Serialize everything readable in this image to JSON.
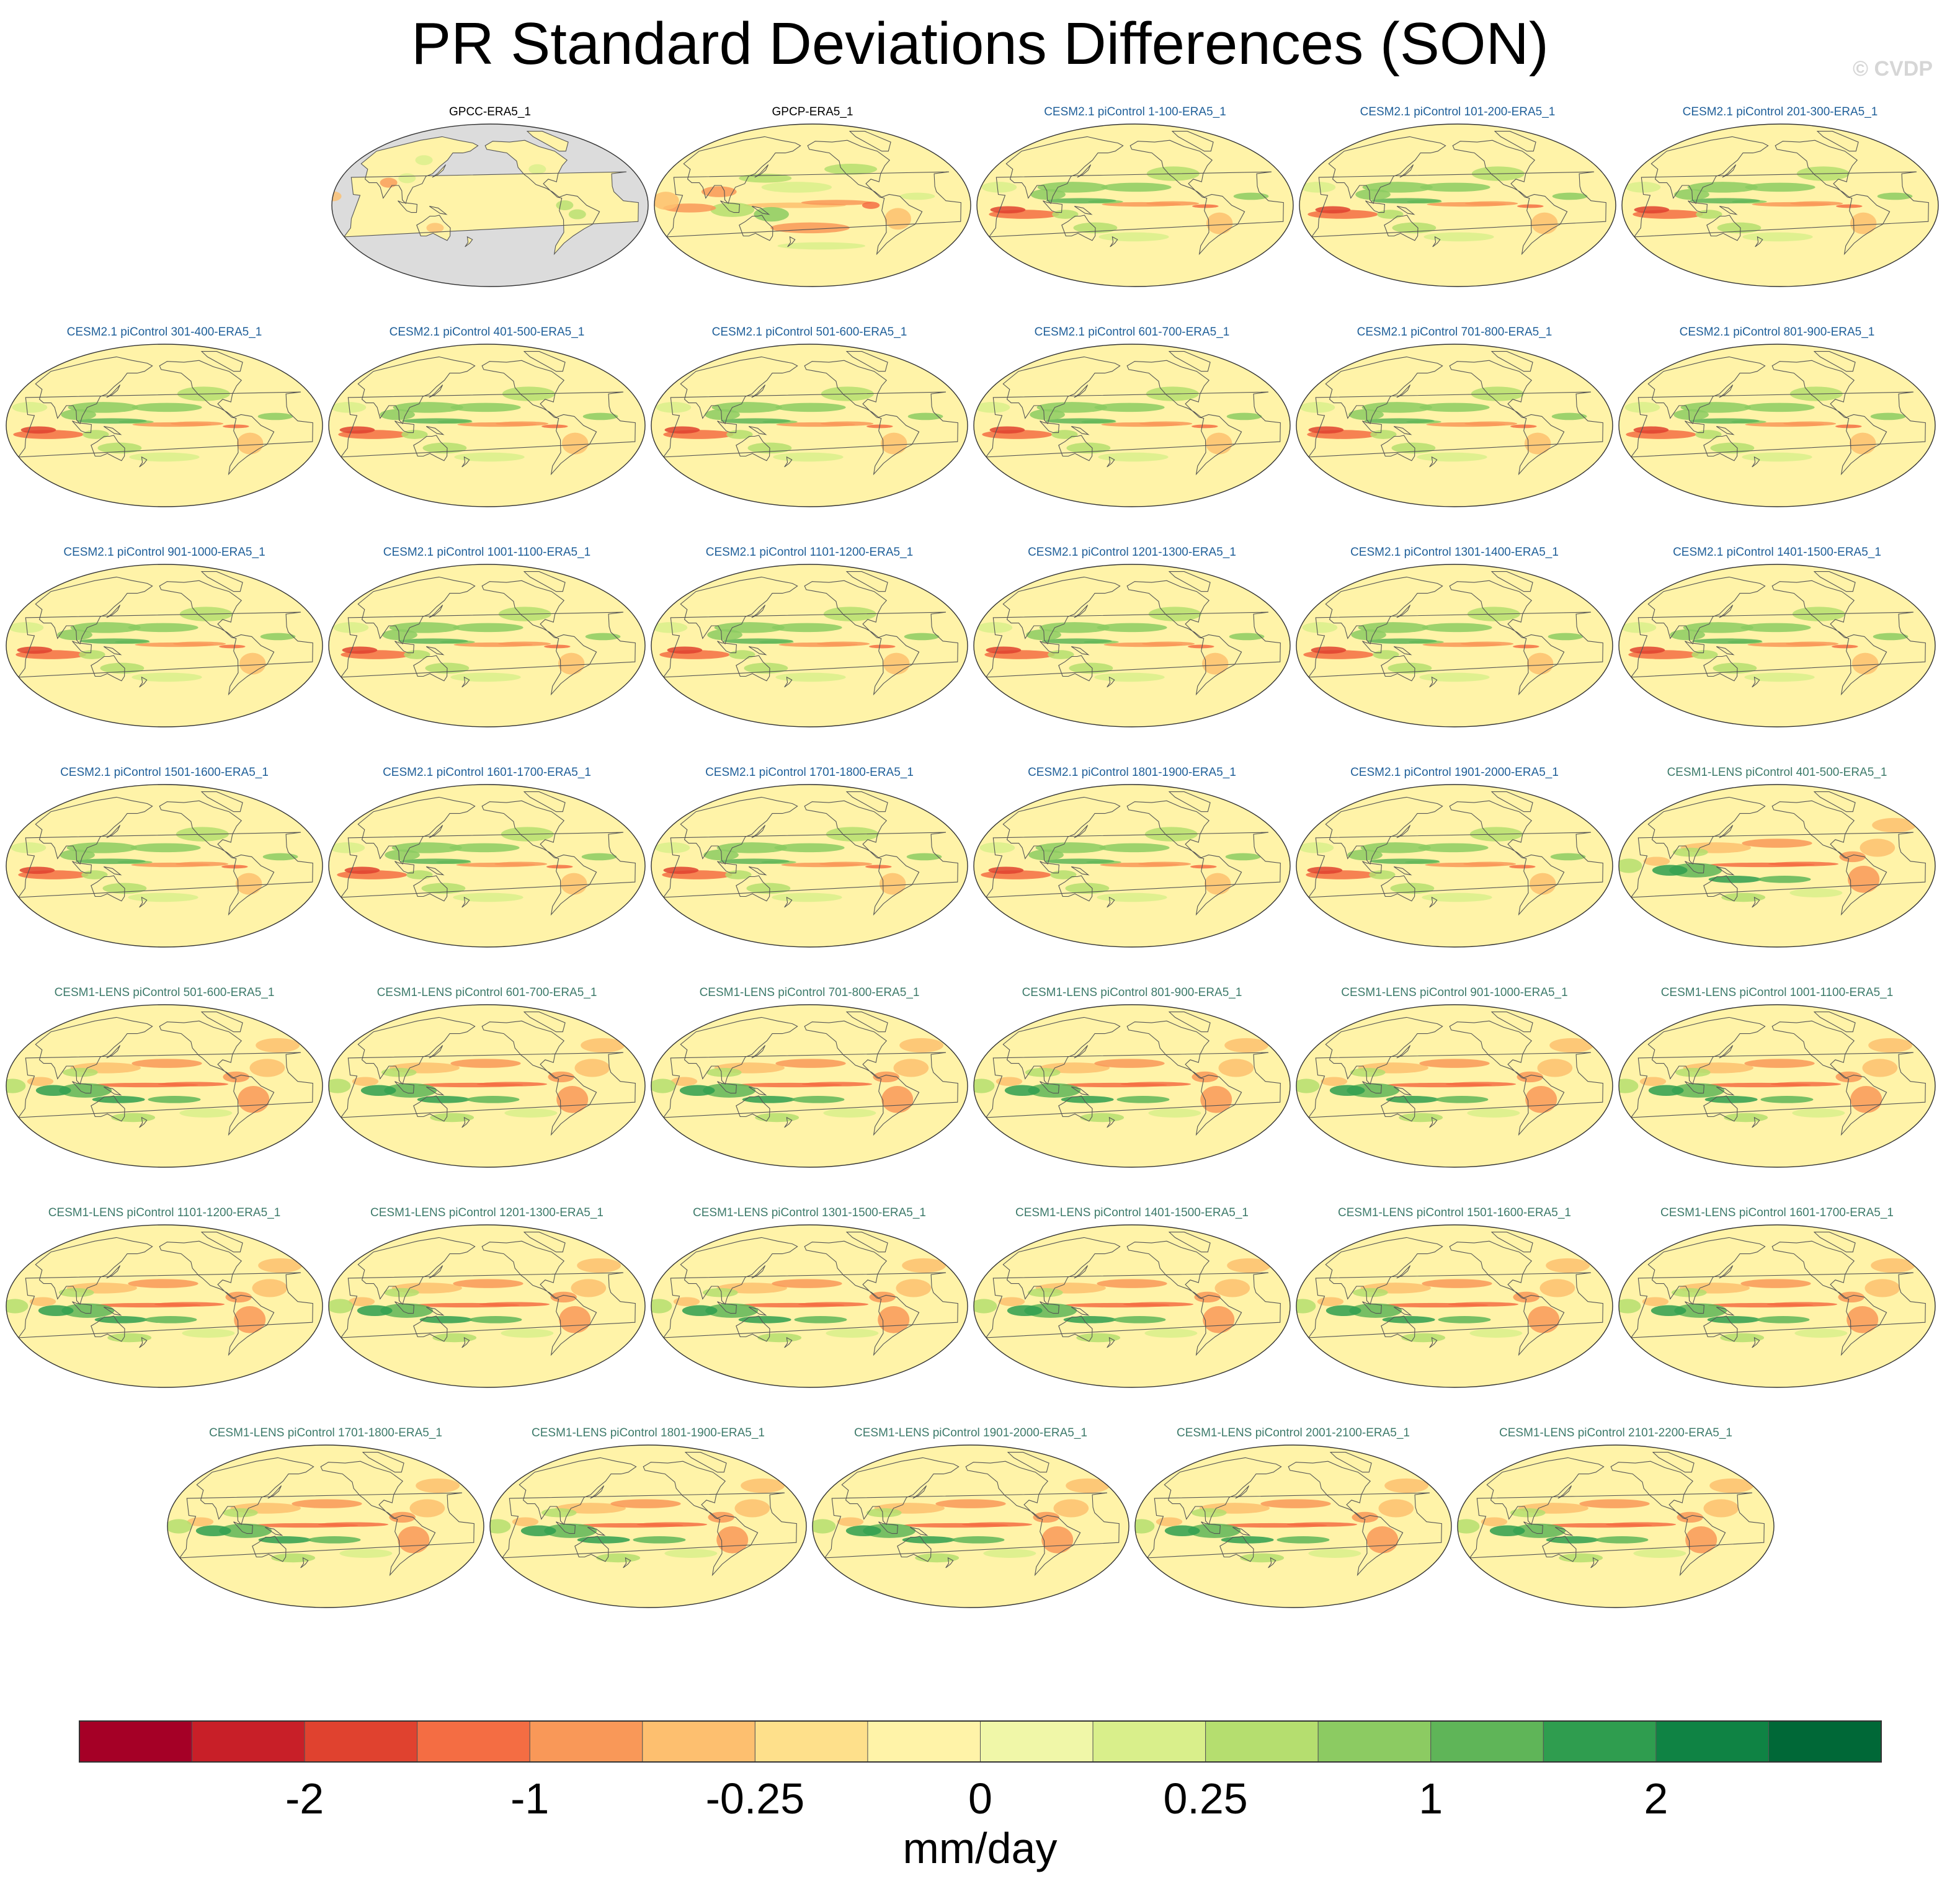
{
  "figure": {
    "title": "PR Standard Deviations Differences (SON)",
    "watermark": "© CVDP"
  },
  "colors": {
    "ocean_label_black": "#000000",
    "label_cesm2": "#1f5f99",
    "label_cesm1": "#3d7a6a",
    "land_gray": "#dcdcdc",
    "coast": "#555555"
  },
  "chart_data": {
    "type": "map-grid",
    "projection": "Robinson (Pacific-centered)",
    "season": "SON",
    "variable": "PR",
    "units": "mm/day",
    "panels": [
      {
        "label": "GPCC-ERA5_1",
        "group": "obs",
        "pattern": "land"
      },
      {
        "label": "GPCP-ERA5_1",
        "group": "obs",
        "pattern": "gpcp"
      },
      {
        "label": "CESM2.1 piControl 1-100-ERA5_1",
        "group": "cesm2",
        "pattern": "cesm2"
      },
      {
        "label": "CESM2.1 piControl 101-200-ERA5_1",
        "group": "cesm2",
        "pattern": "cesm2"
      },
      {
        "label": "CESM2.1 piControl 201-300-ERA5_1",
        "group": "cesm2",
        "pattern": "cesm2"
      },
      {
        "label": "CESM2.1 piControl 301-400-ERA5_1",
        "group": "cesm2",
        "pattern": "cesm2"
      },
      {
        "label": "CESM2.1 piControl 401-500-ERA5_1",
        "group": "cesm2",
        "pattern": "cesm2"
      },
      {
        "label": "CESM2.1 piControl 501-600-ERA5_1",
        "group": "cesm2",
        "pattern": "cesm2"
      },
      {
        "label": "CESM2.1 piControl 601-700-ERA5_1",
        "group": "cesm2",
        "pattern": "cesm2"
      },
      {
        "label": "CESM2.1 piControl 701-800-ERA5_1",
        "group": "cesm2",
        "pattern": "cesm2"
      },
      {
        "label": "CESM2.1 piControl 801-900-ERA5_1",
        "group": "cesm2",
        "pattern": "cesm2"
      },
      {
        "label": "CESM2.1 piControl 901-1000-ERA5_1",
        "group": "cesm2",
        "pattern": "cesm2"
      },
      {
        "label": "CESM2.1 piControl 1001-1100-ERA5_1",
        "group": "cesm2",
        "pattern": "cesm2"
      },
      {
        "label": "CESM2.1 piControl 1101-1200-ERA5_1",
        "group": "cesm2",
        "pattern": "cesm2"
      },
      {
        "label": "CESM2.1 piControl 1201-1300-ERA5_1",
        "group": "cesm2",
        "pattern": "cesm2"
      },
      {
        "label": "CESM2.1 piControl 1301-1400-ERA5_1",
        "group": "cesm2",
        "pattern": "cesm2"
      },
      {
        "label": "CESM2.1 piControl 1401-1500-ERA5_1",
        "group": "cesm2",
        "pattern": "cesm2"
      },
      {
        "label": "CESM2.1 piControl 1501-1600-ERA5_1",
        "group": "cesm2",
        "pattern": "cesm2"
      },
      {
        "label": "CESM2.1 piControl 1601-1700-ERA5_1",
        "group": "cesm2",
        "pattern": "cesm2"
      },
      {
        "label": "CESM2.1 piControl 1701-1800-ERA5_1",
        "group": "cesm2",
        "pattern": "cesm2"
      },
      {
        "label": "CESM2.1 piControl 1801-1900-ERA5_1",
        "group": "cesm2",
        "pattern": "cesm2"
      },
      {
        "label": "CESM2.1 piControl 1901-2000-ERA5_1",
        "group": "cesm2",
        "pattern": "cesm2"
      },
      {
        "label": "CESM1-LENS piControl 401-500-ERA5_1",
        "group": "cesm1",
        "pattern": "cesm1"
      },
      {
        "label": "CESM1-LENS piControl 501-600-ERA5_1",
        "group": "cesm1",
        "pattern": "cesm1"
      },
      {
        "label": "CESM1-LENS piControl 601-700-ERA5_1",
        "group": "cesm1",
        "pattern": "cesm1"
      },
      {
        "label": "CESM1-LENS piControl 701-800-ERA5_1",
        "group": "cesm1",
        "pattern": "cesm1"
      },
      {
        "label": "CESM1-LENS piControl 801-900-ERA5_1",
        "group": "cesm1",
        "pattern": "cesm1"
      },
      {
        "label": "CESM1-LENS piControl 901-1000-ERA5_1",
        "group": "cesm1",
        "pattern": "cesm1"
      },
      {
        "label": "CESM1-LENS piControl 1001-1100-ERA5_1",
        "group": "cesm1",
        "pattern": "cesm1"
      },
      {
        "label": "CESM1-LENS piControl 1101-1200-ERA5_1",
        "group": "cesm1",
        "pattern": "cesm1"
      },
      {
        "label": "CESM1-LENS piControl 1201-1300-ERA5_1",
        "group": "cesm1",
        "pattern": "cesm1"
      },
      {
        "label": "CESM1-LENS piControl 1301-1500-ERA5_1",
        "group": "cesm1",
        "pattern": "cesm1"
      },
      {
        "label": "CESM1-LENS piControl 1401-1500-ERA5_1",
        "group": "cesm1",
        "pattern": "cesm1"
      },
      {
        "label": "CESM1-LENS piControl 1501-1600-ERA5_1",
        "group": "cesm1",
        "pattern": "cesm1"
      },
      {
        "label": "CESM1-LENS piControl 1601-1700-ERA5_1",
        "group": "cesm1",
        "pattern": "cesm1"
      },
      {
        "label": "CESM1-LENS piControl 1701-1800-ERA5_1",
        "group": "cesm1",
        "pattern": "cesm1"
      },
      {
        "label": "CESM1-LENS piControl 1801-1900-ERA5_1",
        "group": "cesm1",
        "pattern": "cesm1"
      },
      {
        "label": "CESM1-LENS piControl 1901-2000-ERA5_1",
        "group": "cesm1",
        "pattern": "cesm1"
      },
      {
        "label": "CESM1-LENS piControl 2001-2100-ERA5_1",
        "group": "cesm1",
        "pattern": "cesm1"
      },
      {
        "label": "CESM1-LENS piControl 2101-2200-ERA5_1",
        "group": "cesm1",
        "pattern": "cesm1"
      }
    ],
    "colorbar": {
      "colors": [
        "#a50026",
        "#c81f28",
        "#e0422f",
        "#f46d43",
        "#f99858",
        "#fdbf6f",
        "#fee08b",
        "#fff3a8",
        "#f0f7a8",
        "#d9ef8b",
        "#b5de6f",
        "#8ccb62",
        "#5fb558",
        "#2f9d4f",
        "#0f8344",
        "#006837"
      ],
      "tick_labels": [
        "-2",
        "-1",
        "-0.25",
        "0",
        "0.25",
        "1",
        "2"
      ],
      "label": "mm/day"
    }
  }
}
